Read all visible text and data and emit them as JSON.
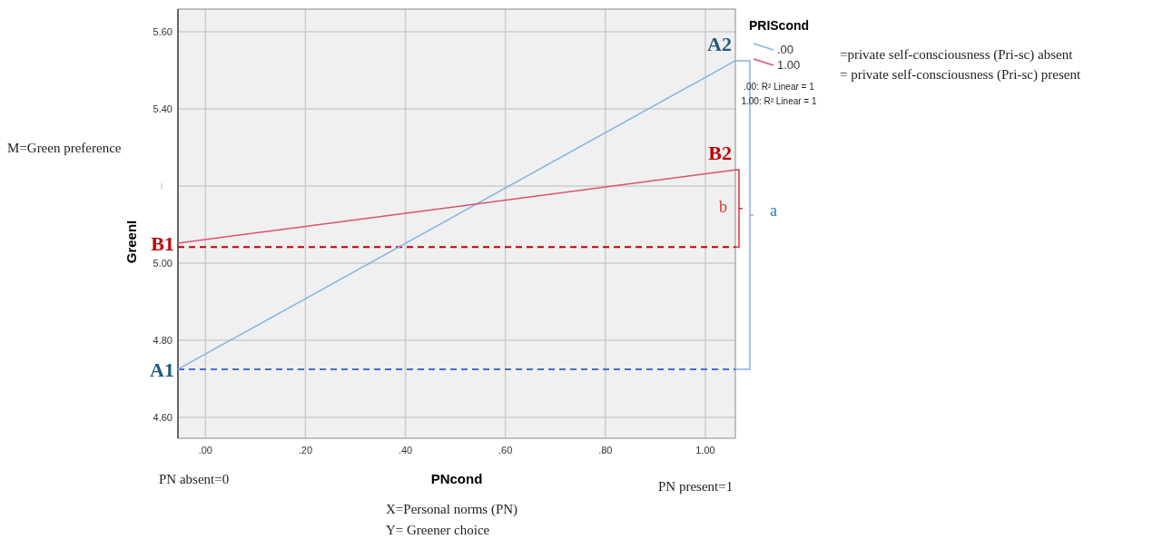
{
  "chart_data": {
    "type": "line",
    "xlabel": "PNcond",
    "ylabel": "GreenI",
    "legend_title": "PRIScond",
    "x": [
      -0.055,
      1.06
    ],
    "series": [
      {
        "name": ".00",
        "color": "#85b3e6",
        "values": [
          4.725,
          5.525
        ]
      },
      {
        "name": "1.00",
        "color": "#d9536e",
        "values": [
          5.052,
          5.242
        ]
      }
    ],
    "xlim": [
      -0.055,
      1.06
    ],
    "xticks": [
      {
        "value": 0,
        "label": ".00"
      },
      {
        "value": 0.2,
        "label": ".20"
      },
      {
        "value": 0.4,
        "label": ".40"
      },
      {
        "value": 0.6,
        "label": ".60"
      },
      {
        "value": 0.8,
        "label": ".80"
      },
      {
        "value": 1,
        "label": "1.00"
      }
    ],
    "ylim": [
      4.546,
      5.659
    ],
    "yticks": [
      {
        "value": 4.6,
        "label": "4.60"
      },
      {
        "value": 4.8,
        "label": "4.80"
      },
      {
        "value": 5,
        "label": "5.00"
      },
      {
        "value": 5.2,
        "label": null
      },
      {
        "value": 5.4,
        "label": "5.40"
      },
      {
        "value": 5.6,
        "label": "5.60"
      }
    ],
    "grid": true,
    "legend": "top right",
    "marker": "none",
    "line_style": "solid",
    "ref_lines": [
      {
        "axis": "y",
        "value": 4.725,
        "color": "#4472c4",
        "line_style": "dashed"
      },
      {
        "axis": "y",
        "value": 5.042,
        "color": "#c00000",
        "line_style": "dashed"
      }
    ],
    "annotations": [
      "A1",
      "B1",
      "A2",
      "B2",
      "a",
      "b",
      ".00: R² Linear = 1",
      "1.00: R² Linear = 1",
      "=private self-consciousness (Pri-sc) absent",
      "= private self-consciousness (Pri-sc) present",
      "M=Green preference",
      "PN absent=0",
      "PN present=1",
      "X=Personal norms (PN)",
      "Y= Greener choice"
    ]
  }
}
